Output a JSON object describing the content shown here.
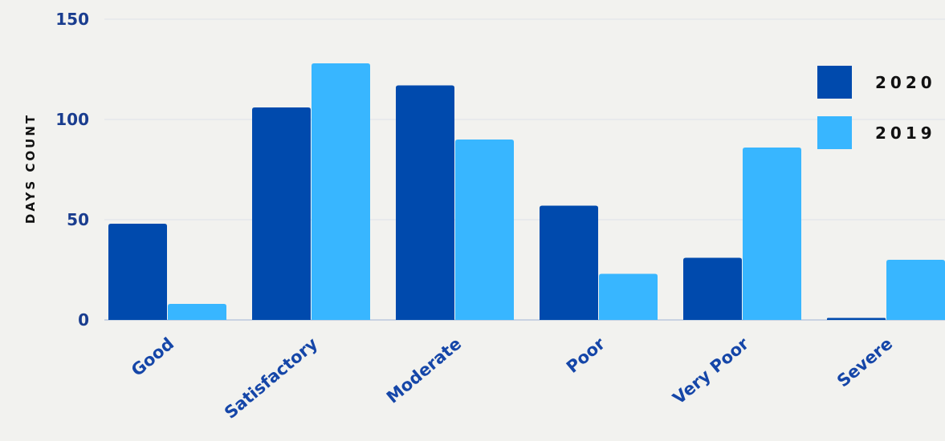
{
  "chart_data": {
    "type": "bar",
    "title": "",
    "xlabel": "",
    "ylabel": "DAYS COUNT",
    "categories": [
      "Good",
      "Satisfactory",
      "Moderate",
      "Poor",
      "Very Poor",
      "Severe"
    ],
    "series": [
      {
        "name": "2020",
        "color": "#004aad",
        "values": [
          48,
          106,
          117,
          57,
          31,
          1
        ]
      },
      {
        "name": "2019",
        "color": "#38b6ff",
        "values": [
          8,
          128,
          90,
          23,
          86,
          30
        ]
      }
    ],
    "ylim": [
      0,
      150
    ],
    "yticks": [
      0,
      50,
      100,
      150
    ],
    "grid": true,
    "legend": "top-right"
  }
}
